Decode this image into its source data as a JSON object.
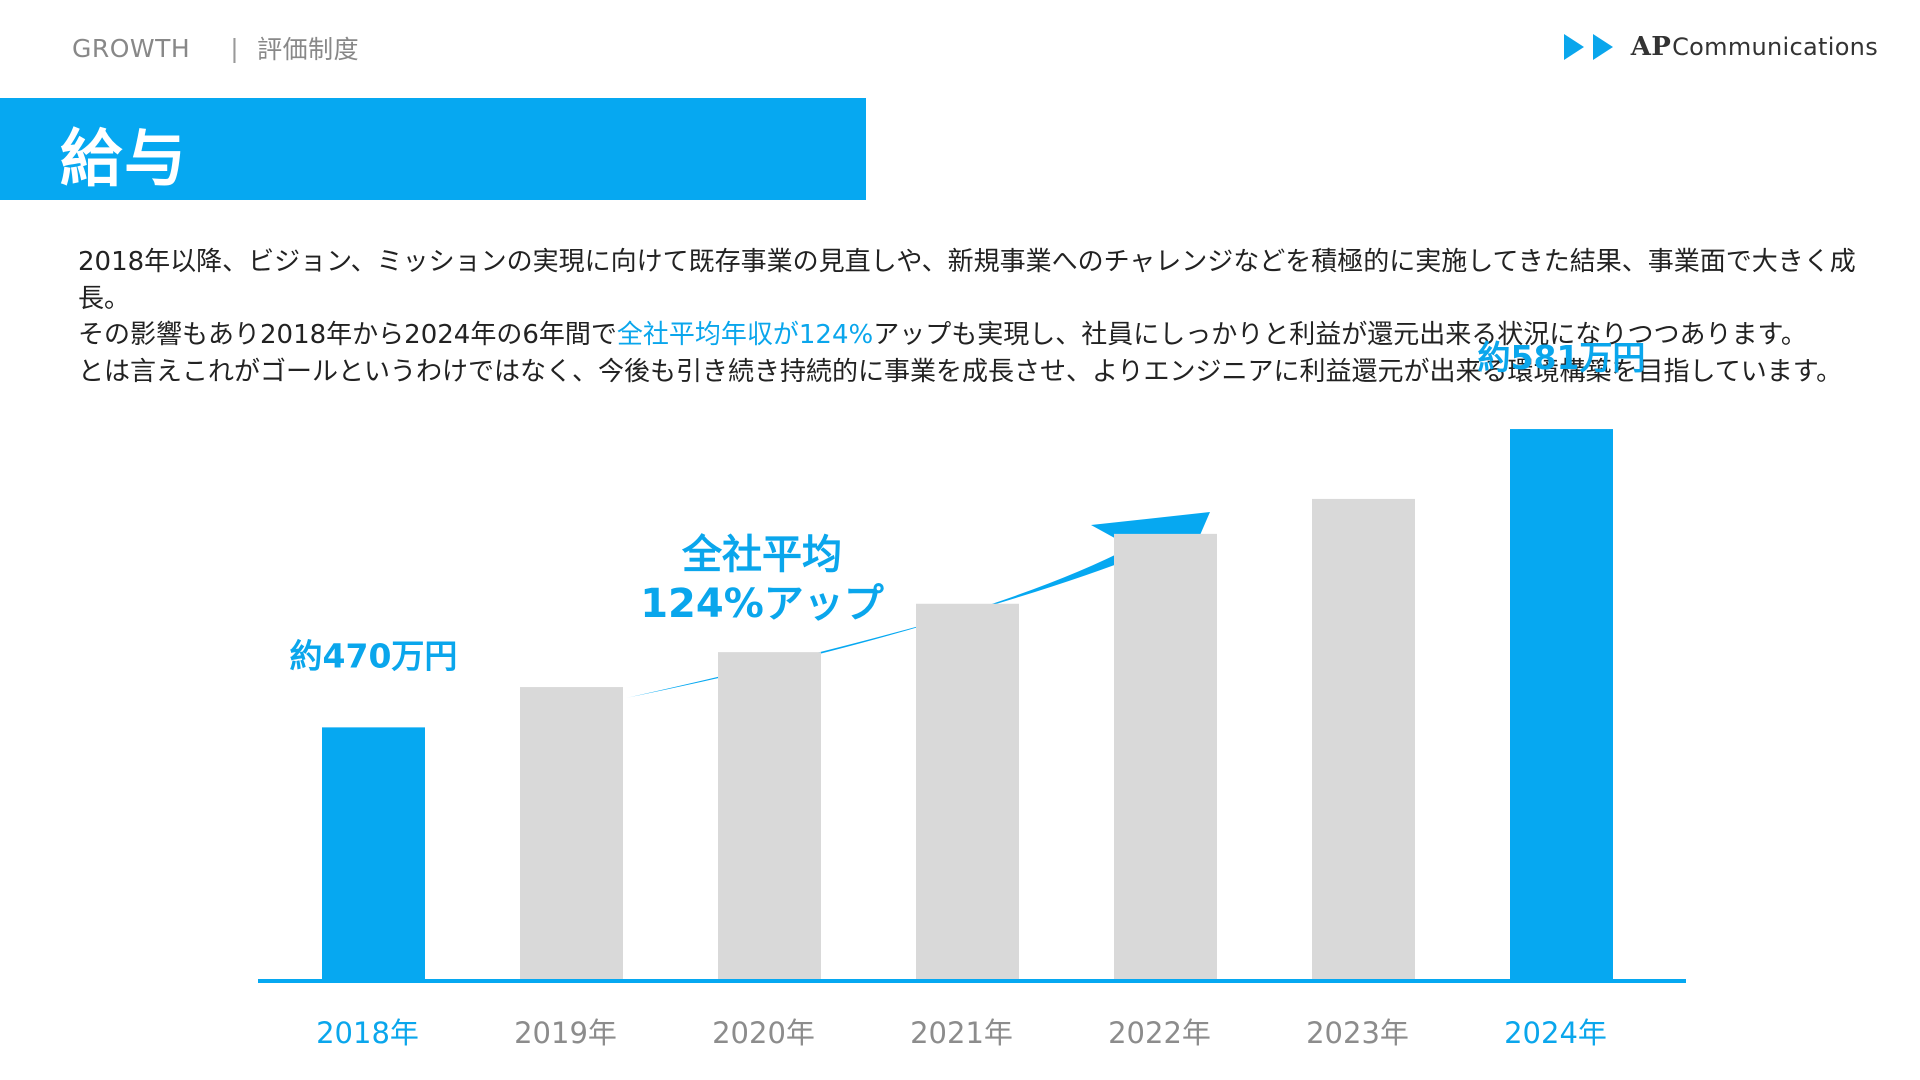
{
  "header": {
    "section": "GROWTH",
    "separator": "|",
    "page": "評価制度",
    "logo_brand": "AP",
    "logo_rest": "Communications"
  },
  "title": "給与",
  "intro": {
    "p1": "2018年以降、ビジョン、ミッションの実現に向けて既存事業の見直しや、新規事業へのチャレンジなどを積極的に実施してきた結果、事業面で大きく成長。",
    "p2_before": "その影響もあり2018年から2024年の6年間で",
    "p2_highlight": "全社平均年収が124%",
    "p2_after": "アップも実現し、社員にしっかりと利益が還元出来る状況になりつつあります。",
    "p3": "とは言えこれがゴールというわけではなく、今後も引き続き持続的に事業を成長させ、よりエンジニアに利益還元が出来る環境構築を目指しています。"
  },
  "chart_data": {
    "type": "bar",
    "categories": [
      "2018年",
      "2019年",
      "2020年",
      "2021年",
      "2022年",
      "2023年",
      "2024年"
    ],
    "values": [
      470,
      485,
      498,
      516,
      542,
      555,
      581
    ],
    "unit": "万円",
    "highlighted": [
      0,
      6
    ],
    "data_labels": {
      "0": "約470万円",
      "6": "約581万円"
    },
    "annotation": {
      "line1": "全社平均",
      "line2": "124%アップ"
    },
    "ylim": [
      376,
      600
    ],
    "colors": {
      "highlight": "#06a8f1",
      "base": "#d9d9d9",
      "axis": "#06a8f1",
      "label_highlight": "#0aa6ec",
      "label_base": "#8c8c8c"
    }
  }
}
